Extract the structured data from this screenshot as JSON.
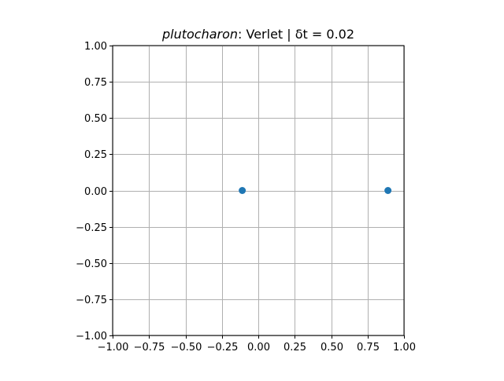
{
  "chart_data": {
    "type": "scatter",
    "title": {
      "italic_part": "plutocharon",
      "rest": ": Verlet | δt = 0.02"
    },
    "xlabel": "",
    "ylabel": "",
    "xlim": [
      -1.0,
      1.0
    ],
    "ylim": [
      -1.0,
      1.0
    ],
    "xticks": [
      -1.0,
      -0.75,
      -0.5,
      -0.25,
      0.0,
      0.25,
      0.5,
      0.75,
      1.0
    ],
    "yticks": [
      -1.0,
      -0.75,
      -0.5,
      -0.25,
      0.0,
      0.25,
      0.5,
      0.75,
      1.0
    ],
    "xtick_labels": [
      "−1.00",
      "−0.75",
      "−0.50",
      "−0.25",
      "0.00",
      "0.25",
      "0.50",
      "0.75",
      "1.00"
    ],
    "ytick_labels": [
      "−1.00",
      "−0.75",
      "−0.50",
      "−0.25",
      "0.00",
      "0.25",
      "0.50",
      "0.75",
      "1.00"
    ],
    "grid": true,
    "series": [
      {
        "x": [
          -0.11,
          0.89
        ],
        "y": [
          0.0,
          0.0
        ],
        "color": "#1f77b4"
      }
    ]
  }
}
